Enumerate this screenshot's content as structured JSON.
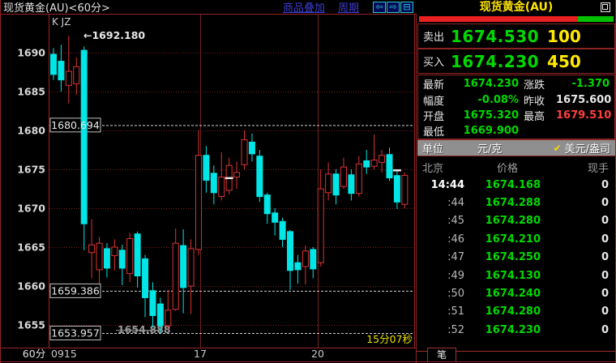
{
  "window": {
    "title": "现货黄金(AU)<60分>",
    "links": [
      "商品叠加",
      "周期"
    ],
    "icons": [
      {
        "name": "back-arrow-icon",
        "glyph": "⇦"
      },
      {
        "name": "forward-arrow-icon",
        "glyph": "⇨"
      },
      {
        "name": "split-window-icon",
        "glyph": "⊟"
      }
    ]
  },
  "colors": {
    "up": "#dd3333",
    "down": "#00e5e5",
    "grid": "#742020",
    "frame": "#9b2525",
    "green_text": "#00d900",
    "yellow_text": "#ffe800",
    "red_text": "#ff4040"
  },
  "chart_data": {
    "type": "candlestick",
    "title": "现货黄金(AU) 60分钟K线",
    "legend": "K JZ",
    "period_label": "60分",
    "y_ticks": [
      1690,
      1685,
      1680,
      1675,
      1670,
      1665,
      1660,
      1655
    ],
    "ylim": [
      1652.5,
      1693
    ],
    "x_ticks": [
      {
        "label": "0915",
        "x": 63,
        "align": "start",
        "vline": false
      },
      {
        "label": "17",
        "x": 247,
        "align": "middle",
        "vline": true
      },
      {
        "label": "20",
        "x": 392,
        "align": "middle",
        "vline": true
      }
    ],
    "high_annotation": {
      "text": "←1692.180",
      "price": 1692.18
    },
    "levels": [
      {
        "text": "1680.694",
        "price": 1680.694
      },
      {
        "text": "1659.386",
        "price": 1659.386
      },
      {
        "text": "1653.957",
        "price": 1653.957
      }
    ],
    "struck_label": {
      "text": "1654.888",
      "price": 1654.888
    },
    "countdown": "15分07秒",
    "markers": [
      {
        "index": 23,
        "price": 1673.9
      },
      {
        "index": 45,
        "price": 1674.9
      }
    ],
    "candles_format": [
      "open",
      "close",
      "high",
      "low"
    ],
    "candles": [
      [
        1689.8,
        1687.2,
        1690.6,
        1686.5
      ],
      [
        1688.9,
        1686.5,
        1691.0,
        1685.0
      ],
      [
        1685.8,
        1687.6,
        1692.18,
        1683.5
      ],
      [
        1686.0,
        1688.2,
        1689.4,
        1684.6
      ],
      [
        1690.3,
        1668.0,
        1690.8,
        1664.6
      ],
      [
        1664.3,
        1665.3,
        1668.6,
        1661.0
      ],
      [
        1662.1,
        1665.5,
        1666.3,
        1660.3
      ],
      [
        1664.8,
        1662.3,
        1665.5,
        1661.1
      ],
      [
        1663.9,
        1665.0,
        1666.0,
        1662.0
      ],
      [
        1664.6,
        1662.3,
        1665.3,
        1660.1
      ],
      [
        1661.6,
        1666.1,
        1666.8,
        1660.5
      ],
      [
        1666.7,
        1661.3,
        1667.0,
        1659.8
      ],
      [
        1663.5,
        1658.5,
        1664.0,
        1656.0
      ],
      [
        1659.4,
        1656.2,
        1660.5,
        1654.7
      ],
      [
        1657.7,
        1654.9,
        1658.5,
        1653.957
      ],
      [
        1654.9,
        1656.9,
        1659.5,
        1654.5
      ],
      [
        1657.0,
        1665.5,
        1667.4,
        1656.8
      ],
      [
        1665.2,
        1659.8,
        1667.3,
        1656.5
      ],
      [
        1660.0,
        1664.8,
        1666.0,
        1656.4
      ],
      [
        1664.7,
        1676.8,
        1680.05,
        1664.0
      ],
      [
        1676.8,
        1673.6,
        1678.0,
        1672.0
      ],
      [
        1674.5,
        1672.0,
        1675.5,
        1670.5
      ],
      [
        1671.5,
        1674.0,
        1677.2,
        1671.0
      ],
      [
        1672.3,
        1675.5,
        1676.5,
        1671.8
      ],
      [
        1674.0,
        1674.6,
        1676.0,
        1672.5
      ],
      [
        1675.6,
        1678.8,
        1680.0,
        1675.0
      ],
      [
        1678.5,
        1677.0,
        1679.6,
        1676.0
      ],
      [
        1676.7,
        1671.5,
        1677.5,
        1670.8
      ],
      [
        1671.7,
        1669.3,
        1672.0,
        1668.0
      ],
      [
        1669.4,
        1668.2,
        1670.0,
        1666.5
      ],
      [
        1668.3,
        1666.0,
        1668.8,
        1665.0
      ],
      [
        1667.0,
        1662.0,
        1667.2,
        1659.5
      ],
      [
        1663.0,
        1662.1,
        1664.0,
        1660.3
      ],
      [
        1662.5,
        1664.5,
        1665.2,
        1660.2
      ],
      [
        1664.7,
        1662.2,
        1665.0,
        1661.0
      ],
      [
        1663.0,
        1672.5,
        1675.0,
        1662.5
      ],
      [
        1672.0,
        1674.4,
        1675.9,
        1671.0
      ],
      [
        1674.4,
        1671.7,
        1675.0,
        1670.5
      ],
      [
        1672.8,
        1675.3,
        1676.5,
        1672.5
      ],
      [
        1674.3,
        1671.9,
        1675.0,
        1671.0
      ],
      [
        1671.9,
        1675.7,
        1676.7,
        1671.5
      ],
      [
        1676.1,
        1675.3,
        1677.5,
        1674.4
      ],
      [
        1675.4,
        1676.2,
        1679.51,
        1675.0
      ],
      [
        1675.9,
        1676.8,
        1677.5,
        1674.6
      ],
      [
        1676.9,
        1673.9,
        1677.8,
        1673.5
      ],
      [
        1674.2,
        1670.8,
        1674.8,
        1669.9
      ],
      [
        1670.5,
        1674.23,
        1674.6,
        1670.0
      ]
    ]
  },
  "panel": {
    "title": "现货黄金(AU)",
    "ratio_bar": {
      "red_pct": 81.5,
      "green_pct": 18.5
    },
    "sell": {
      "label": "卖出",
      "price": "1674.530",
      "volume": "100"
    },
    "buy": {
      "label": "买入",
      "price": "1674.230",
      "volume": "450"
    },
    "quote_rows": [
      {
        "label1": "最新",
        "value1": "1674.230",
        "color1": "green",
        "label2": "涨跌",
        "value2": "-1.370",
        "color2": "green"
      },
      {
        "label1": "幅度",
        "value1": "-0.08%",
        "color1": "green",
        "label2": "昨收",
        "value2": "1675.600",
        "color2": "white"
      },
      {
        "label1": "开盘",
        "value1": "1675.320",
        "color1": "green",
        "label2": "最高",
        "value2": "1679.510",
        "color2": "red"
      },
      {
        "label1": "最低",
        "value1": "1669.900",
        "color1": "green",
        "label2": "",
        "value2": "",
        "color2": "white"
      }
    ],
    "unit": {
      "label": "单位",
      "opt1": "元/克",
      "check": "✔",
      "opt2": "美元/盎司"
    },
    "table": {
      "headers": [
        "北京",
        "价格",
        "现手"
      ],
      "rows": [
        [
          "14:44",
          "1674.168",
          "0"
        ],
        [
          ":44",
          "1674.288",
          "0"
        ],
        [
          ":45",
          "1674.280",
          "0"
        ],
        [
          ":46",
          "1674.210",
          "0"
        ],
        [
          ":47",
          "1674.250",
          "0"
        ],
        [
          ":49",
          "1674.130",
          "0"
        ],
        [
          ":50",
          "1674.240",
          "0"
        ],
        [
          ":51",
          "1674.280",
          "0"
        ],
        [
          ":52",
          "1674.230",
          "0"
        ]
      ]
    },
    "tab": "笔"
  }
}
